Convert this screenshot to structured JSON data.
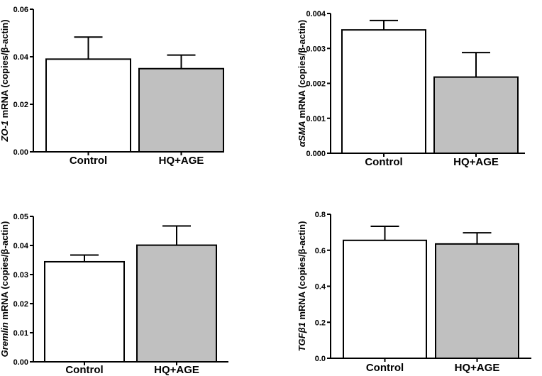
{
  "chart_data": [
    {
      "type": "bar",
      "gene": "ZO-1",
      "ylabel_rest": " mRNA (copies/β-actin)",
      "categories": [
        "Control",
        "HQ+AGE"
      ],
      "values": [
        0.039,
        0.035
      ],
      "errors": [
        0.0093,
        0.0057
      ],
      "colors": [
        "#ffffff",
        "#c0c0c0"
      ],
      "ylim": [
        0,
        0.06
      ],
      "yticks": [
        "0.00",
        "0.02",
        "0.04",
        "0.06"
      ]
    },
    {
      "type": "bar",
      "gene": "αSMA",
      "ylabel_rest": " mRNA (copies/β-actin)",
      "categories": [
        "Control",
        "HQ+AGE"
      ],
      "values": [
        0.00353,
        0.00218
      ],
      "errors": [
        0.00027,
        0.0007
      ],
      "colors": [
        "#ffffff",
        "#c0c0c0"
      ],
      "ylim": [
        0,
        0.004
      ],
      "yticks": [
        "0.000",
        "0.001",
        "0.002",
        "0.003",
        "0.004"
      ]
    },
    {
      "type": "bar",
      "gene": "Gremlin",
      "ylabel_rest": " mRNA (copies/β-actin)",
      "categories": [
        "Control",
        "HQ+AGE"
      ],
      "values": [
        0.0344,
        0.0401
      ],
      "errors": [
        0.0023,
        0.0066
      ],
      "colors": [
        "#ffffff",
        "#c0c0c0"
      ],
      "ylim": [
        0,
        0.05
      ],
      "yticks": [
        "0.00",
        "0.01",
        "0.02",
        "0.03",
        "0.04",
        "0.05"
      ]
    },
    {
      "type": "bar",
      "gene": "TGFβ1",
      "ylabel_rest": " mRNA (copies/β-actin)",
      "categories": [
        "Control",
        "HQ+AGE"
      ],
      "values": [
        0.655,
        0.635
      ],
      "errors": [
        0.078,
        0.062
      ],
      "colors": [
        "#ffffff",
        "#c0c0c0"
      ],
      "ylim": [
        0,
        0.8
      ],
      "yticks": [
        "0.0",
        "0.2",
        "0.4",
        "0.6",
        "0.8"
      ]
    }
  ]
}
